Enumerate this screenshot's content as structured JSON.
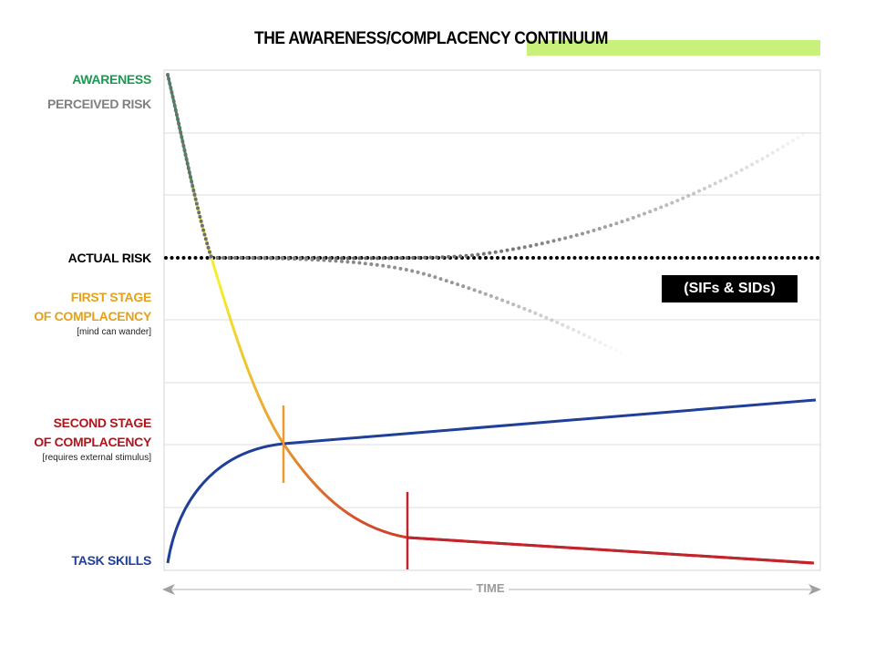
{
  "title": "THE AWARENESS/COMPLACENCY CONTINUUM",
  "labels": {
    "awareness": "AWARENESS",
    "perceived_risk": "PERCEIVED  RISK",
    "actual_risk": "ACTUAL RISK",
    "first_stage_1": "FIRST STAGE",
    "first_stage_2": "OF COMPLACENCY",
    "first_stage_note": "[mind  can wander]",
    "second_stage_1": "SECOND STAGE",
    "second_stage_2": "OF COMPLACENCY",
    "second_stage_note": "[requires external stimulus]",
    "task_skills": "TASK SKILLS"
  },
  "callout": "(SIFs & SIDs)",
  "x_axis_label": "TIME",
  "colors": {
    "awareness": "#1a9a50",
    "perceived_risk": "#808080",
    "actual_risk": "#000000",
    "first_stage": "#e3a21a",
    "second_stage": "#b2141c",
    "task_skills": "#1f3f99",
    "highlight": "#c8f07a"
  }
}
